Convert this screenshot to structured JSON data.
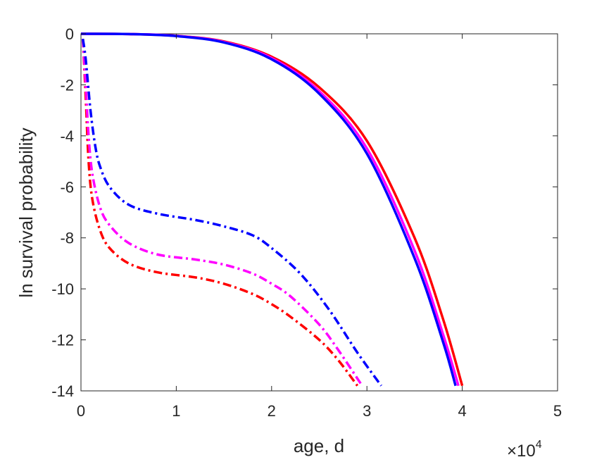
{
  "chart_data": {
    "type": "line",
    "xlabel": "age, d",
    "ylabel": "ln survival probability",
    "x_multiplier": {
      "base": "×10",
      "exponent": "4"
    },
    "xlim": [
      0,
      5
    ],
    "ylim": [
      -14,
      0
    ],
    "xticks": [
      0,
      1,
      2,
      3,
      4,
      5
    ],
    "xtick_labels": [
      "0",
      "1",
      "2",
      "3",
      "4",
      "5"
    ],
    "yticks": [
      0,
      -2,
      -4,
      -6,
      -8,
      -10,
      -12,
      -14
    ],
    "ytick_labels": [
      "0",
      "-2",
      "-4",
      "-6",
      "-8",
      "-10",
      "-12",
      "-14"
    ],
    "grid": false,
    "series": [
      {
        "color": "#ff0000",
        "style": "solid",
        "x": [
          0,
          0.5,
          1.0,
          1.5,
          2.0,
          2.5,
          3.0,
          3.5,
          3.8,
          4.0
        ],
        "y": [
          0,
          -0.01,
          -0.08,
          -0.3,
          -0.9,
          -2.1,
          -4.2,
          -8.0,
          -11.2,
          -13.8
        ]
      },
      {
        "color": "#ff00ff",
        "style": "solid",
        "x": [
          0,
          0.5,
          1.0,
          1.5,
          2.0,
          2.5,
          3.0,
          3.5,
          3.8,
          3.96
        ],
        "y": [
          0,
          -0.01,
          -0.08,
          -0.32,
          -0.95,
          -2.25,
          -4.5,
          -8.5,
          -11.8,
          -13.8
        ]
      },
      {
        "color": "#0000ff",
        "style": "solid",
        "x": [
          0,
          0.5,
          1.0,
          1.5,
          2.0,
          2.5,
          3.0,
          3.5,
          3.8,
          3.93
        ],
        "y": [
          0,
          -0.01,
          -0.09,
          -0.34,
          -1.0,
          -2.35,
          -4.7,
          -8.8,
          -12.1,
          -13.8
        ]
      },
      {
        "color": "#ff0000",
        "style": "dashdot",
        "x": [
          0.02,
          0.05,
          0.08,
          0.12,
          0.2,
          0.3,
          0.5,
          0.8,
          1.2,
          1.5,
          1.8,
          2.0,
          2.2,
          2.5,
          2.7,
          2.9
        ],
        "y": [
          -0.2,
          -2.5,
          -5.0,
          -6.5,
          -7.7,
          -8.4,
          -9.0,
          -9.35,
          -9.55,
          -9.8,
          -10.2,
          -10.6,
          -11.1,
          -12.0,
          -12.8,
          -13.8
        ]
      },
      {
        "color": "#ff00ff",
        "style": "dashdot",
        "x": [
          0.02,
          0.05,
          0.08,
          0.12,
          0.2,
          0.3,
          0.5,
          0.8,
          1.2,
          1.5,
          1.8,
          2.0,
          2.2,
          2.5,
          2.7,
          2.95
        ],
        "y": [
          -0.2,
          -2.0,
          -4.0,
          -5.5,
          -6.8,
          -7.5,
          -8.2,
          -8.65,
          -8.85,
          -9.05,
          -9.4,
          -9.8,
          -10.3,
          -11.4,
          -12.4,
          -13.8
        ]
      },
      {
        "color": "#0000ff",
        "style": "dashdot",
        "x": [
          0.02,
          0.05,
          0.1,
          0.15,
          0.2,
          0.3,
          0.5,
          0.8,
          1.2,
          1.5,
          1.8,
          2.0,
          2.3,
          2.6,
          2.9,
          3.15
        ],
        "y": [
          -0.2,
          -1.0,
          -3.0,
          -4.4,
          -5.2,
          -6.0,
          -6.7,
          -7.05,
          -7.3,
          -7.55,
          -7.9,
          -8.4,
          -9.4,
          -10.8,
          -12.5,
          -13.8
        ]
      }
    ]
  }
}
